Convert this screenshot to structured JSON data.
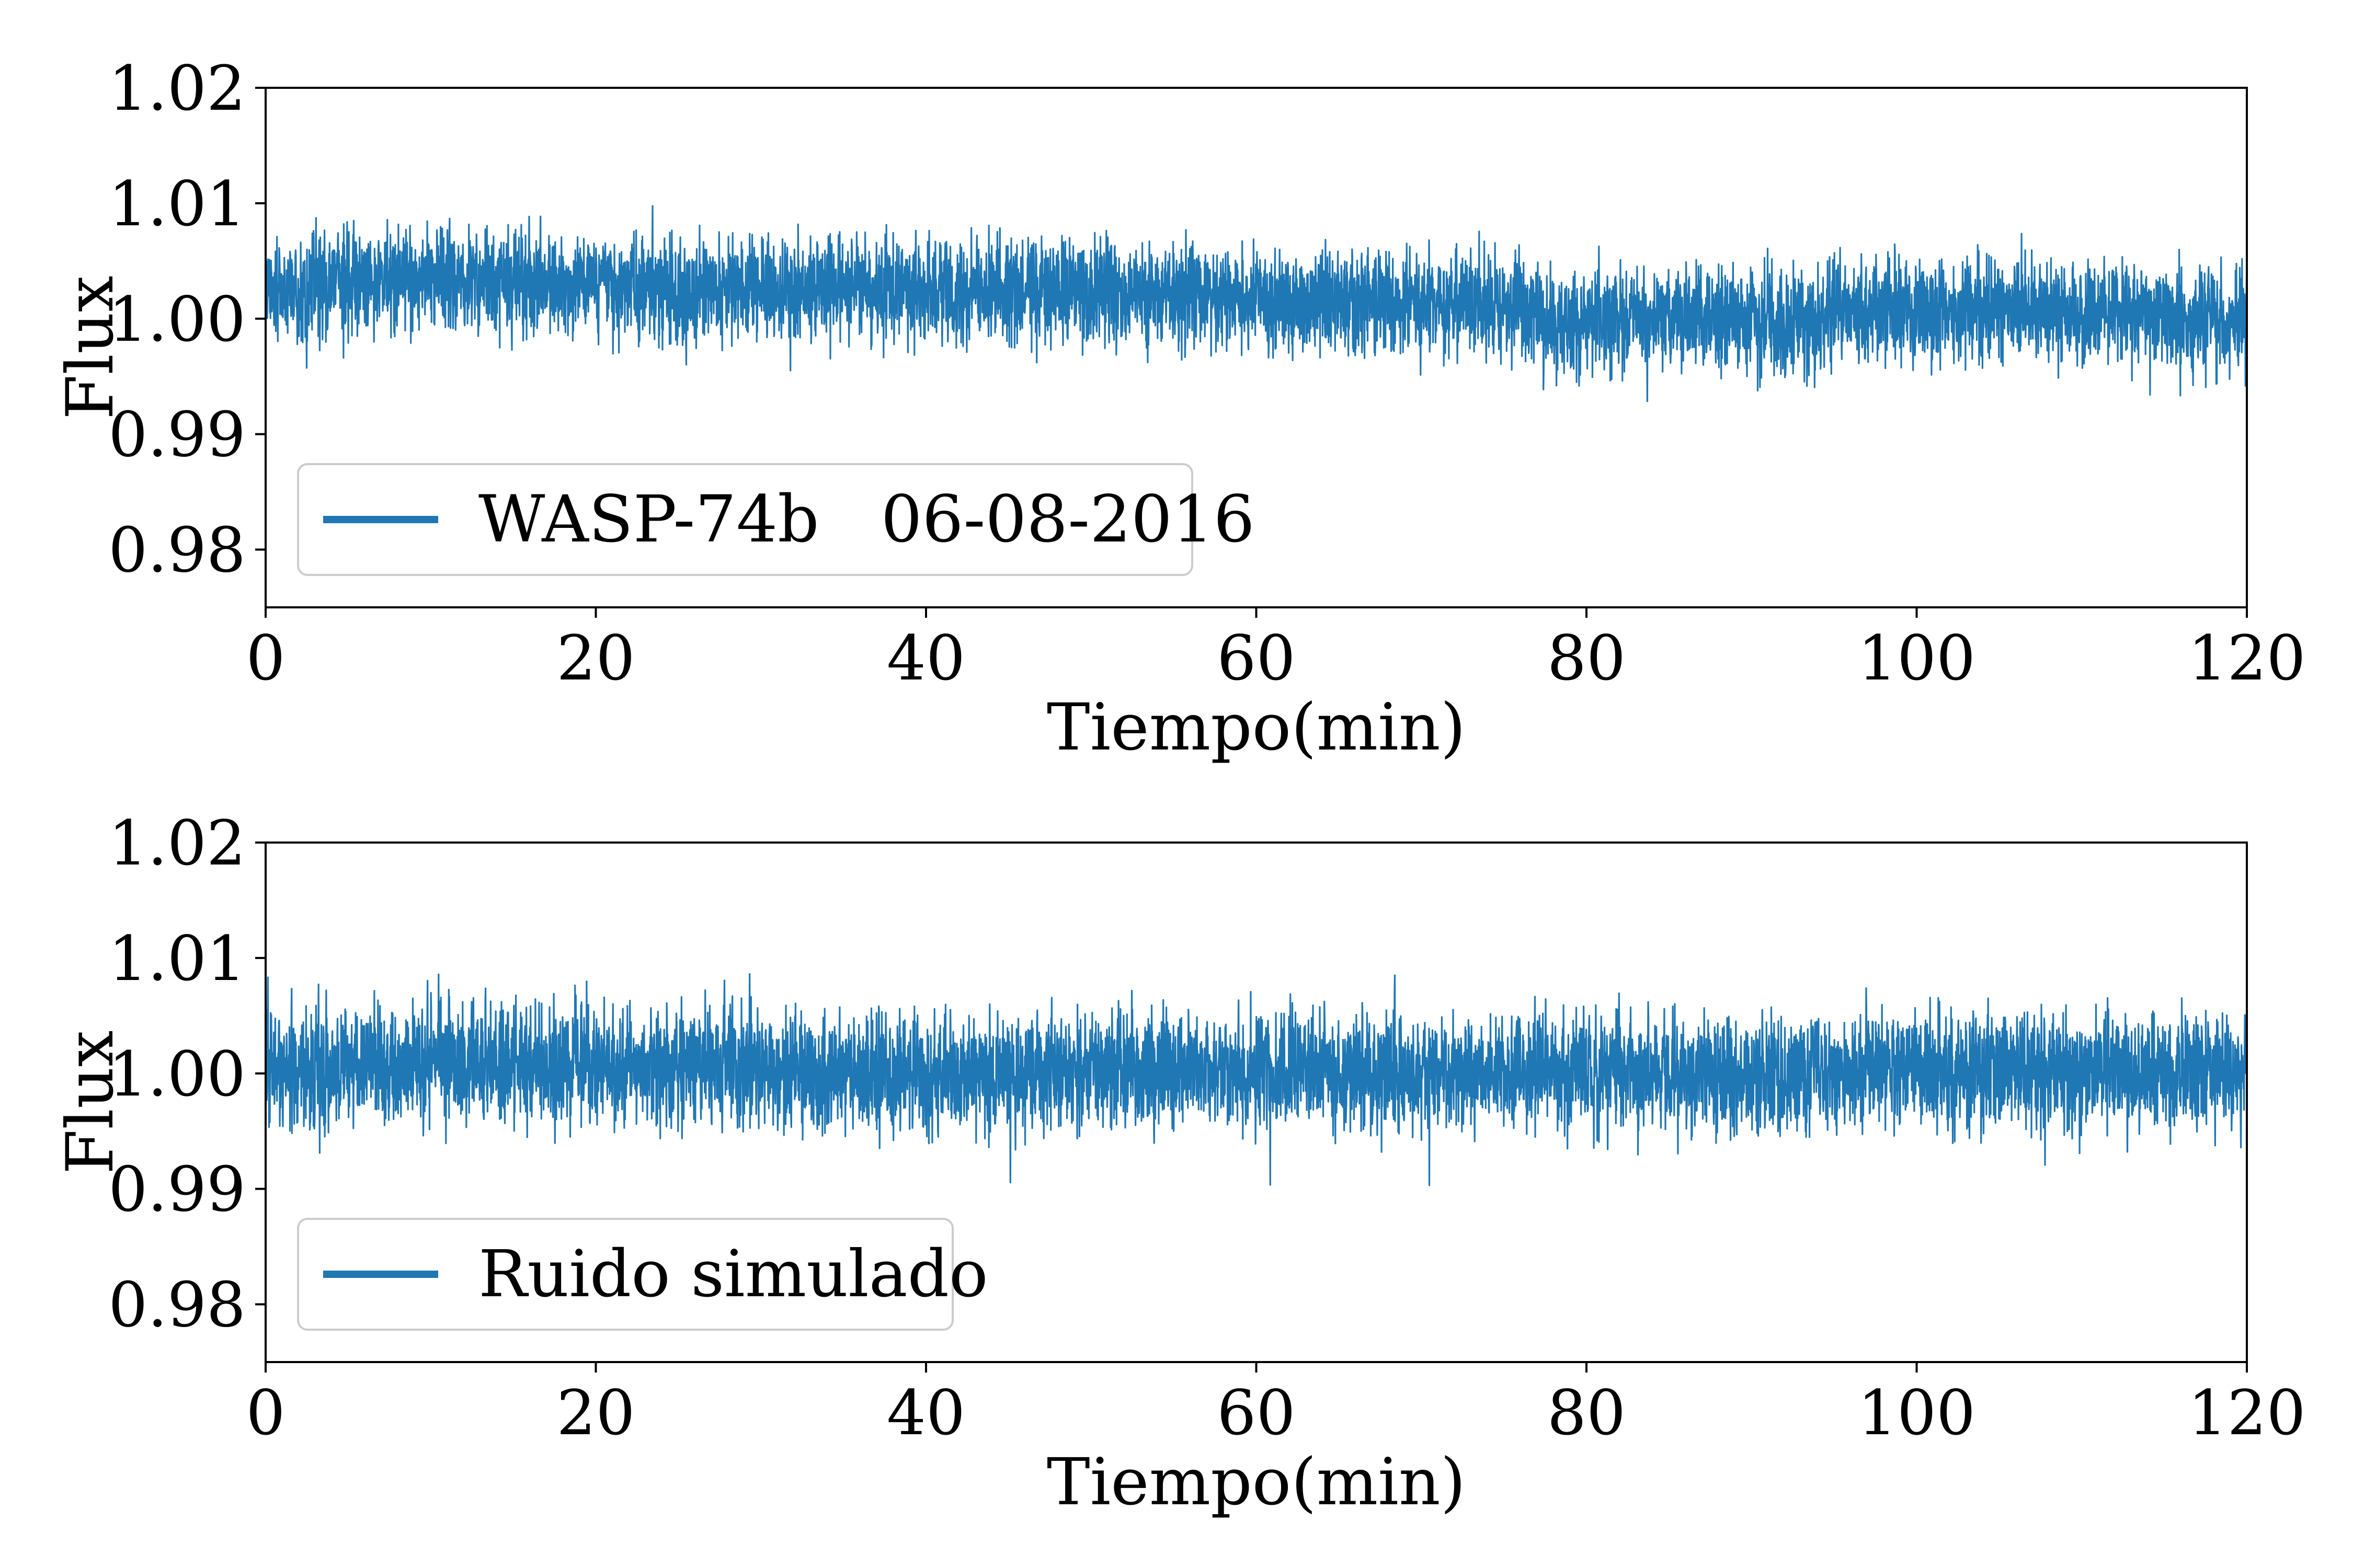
{
  "colors": {
    "series": "#1f77b4",
    "axes": "#000000",
    "legend_border": "#cccccc"
  },
  "chart_data": [
    {
      "type": "line",
      "xlabel": "Tiempo(min)",
      "ylabel": "Flux",
      "xlim": [
        0,
        120
      ],
      "ylim": [
        0.975,
        1.02
      ],
      "xticks": [
        0,
        20,
        40,
        60,
        80,
        100,
        120
      ],
      "xtick_labels": [
        "0",
        "20",
        "40",
        "60",
        "80",
        "100",
        "120"
      ],
      "yticks": [
        0.98,
        0.99,
        1.0,
        1.01,
        1.02
      ],
      "ytick_labels": [
        "0.98",
        "0.99",
        "1.00",
        "1.01",
        "1.02"
      ],
      "grid": false,
      "legend": {
        "position": "lower-left",
        "entries": [
          "WASP-74b   06-08-2016"
        ]
      },
      "series": [
        {
          "name": "WASP-74b   06-08-2016",
          "color": "#1f77b4",
          "noise_std": 0.0022,
          "trend_x": [
            0,
            10,
            20,
            40,
            55,
            62,
            70,
            76,
            77,
            85,
            94,
            95,
            110,
            120
          ],
          "trend_y": [
            1.0025,
            1.0035,
            1.0027,
            1.0025,
            1.0022,
            1.0015,
            1.0015,
            1.001,
            0.9995,
            1.0003,
            0.9995,
            1.0008,
            1.0005,
            0.9995
          ]
        }
      ]
    },
    {
      "type": "line",
      "xlabel": "Tiempo(min)",
      "ylabel": "Flux",
      "xlim": [
        0,
        120
      ],
      "ylim": [
        0.975,
        1.02
      ],
      "xticks": [
        0,
        20,
        40,
        60,
        80,
        100,
        120
      ],
      "xtick_labels": [
        "0",
        "20",
        "40",
        "60",
        "80",
        "100",
        "120"
      ],
      "yticks": [
        0.98,
        0.99,
        1.0,
        1.01,
        1.02
      ],
      "ytick_labels": [
        "0.98",
        "0.99",
        "1.00",
        "1.01",
        "1.02"
      ],
      "grid": false,
      "legend": {
        "position": "lower-left",
        "entries": [
          "Ruido simulado"
        ]
      },
      "series": [
        {
          "name": "Ruido simulado",
          "color": "#1f77b4",
          "noise_std": 0.0025,
          "trend_x": [
            0,
            10,
            20,
            30,
            40,
            50,
            60,
            70,
            80,
            90,
            100,
            110,
            120
          ],
          "trend_y": [
            1.0003,
            1.001,
            1.0008,
            1.0002,
            0.9998,
            1.0003,
            1.0003,
            1.0002,
            1.0003,
            0.9998,
            1.0006,
            1.0001,
            1.0
          ]
        }
      ]
    }
  ]
}
